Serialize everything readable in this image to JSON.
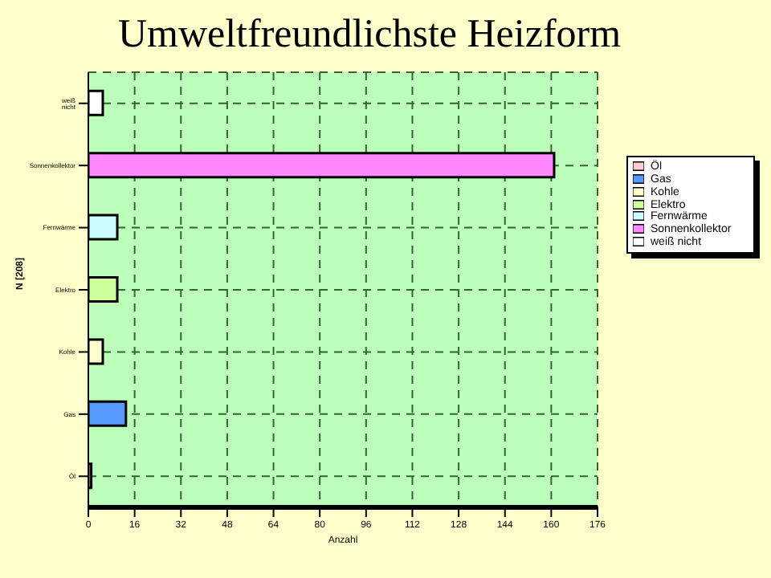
{
  "chart_data": {
    "type": "bar",
    "orientation": "horizontal",
    "stacked": true,
    "title": "Umweltfreundlichste Heizform",
    "xlabel": "Anzahl",
    "ylabel": "N [208]",
    "categories": [
      "weiß nicht",
      "Sonnenkollektor",
      "Fernwärme",
      "Elektro",
      "Kohle",
      "Gas",
      "Öl"
    ],
    "series": [
      {
        "name": "Öl",
        "color": "#ffcccc",
        "values": [
          null,
          null,
          null,
          null,
          null,
          null,
          1
        ]
      },
      {
        "name": "Gas",
        "color": "#5599ff",
        "values": [
          null,
          null,
          null,
          null,
          null,
          13,
          null
        ]
      },
      {
        "name": "Kohle",
        "color": "#ffffcc",
        "values": [
          null,
          null,
          null,
          null,
          5,
          null,
          null
        ]
      },
      {
        "name": "Elektro",
        "color": "#ccff99",
        "values": [
          null,
          null,
          null,
          10,
          null,
          null,
          null
        ]
      },
      {
        "name": "Fernwärme",
        "color": "#ccffff",
        "values": [
          null,
          null,
          10,
          null,
          null,
          null,
          null
        ]
      },
      {
        "name": "Sonnenkollektor",
        "color": "#ff88ff",
        "values": [
          null,
          161,
          null,
          null,
          null,
          null,
          null
        ]
      },
      {
        "name": "weiß nicht",
        "color": "#ffffff",
        "values": [
          5,
          null,
          null,
          null,
          null,
          null,
          null
        ]
      }
    ],
    "xlim": [
      0,
      176
    ],
    "xticks": [
      0,
      16,
      32,
      48,
      64,
      80,
      96,
      112,
      128,
      144,
      160,
      176
    ],
    "grid": true,
    "legend": "right"
  }
}
